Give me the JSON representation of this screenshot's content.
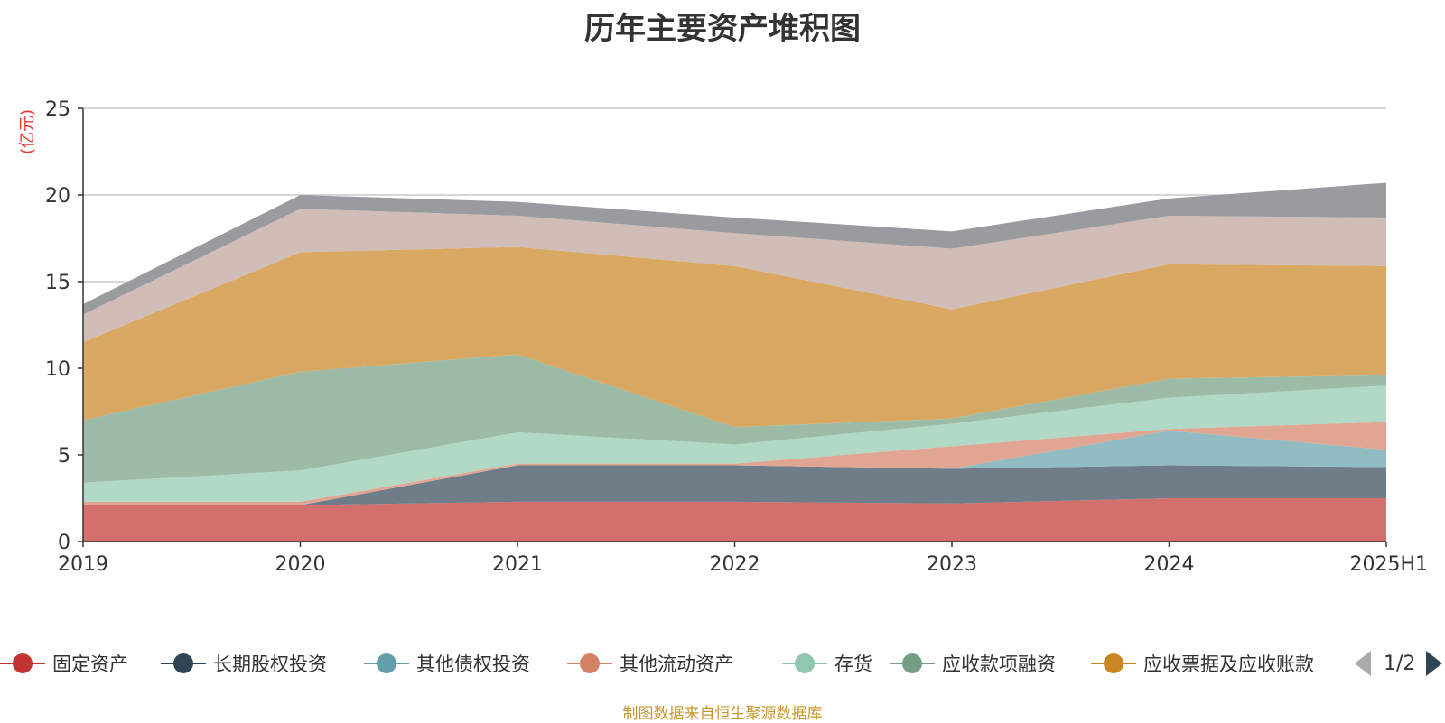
{
  "chart_data": {
    "type": "area",
    "stacked": true,
    "title": "历年主要资产堆积图",
    "ylabel": "(亿元)",
    "xlabel": "",
    "ylim": [
      0,
      25
    ],
    "yticks": [
      0,
      5,
      10,
      15,
      20,
      25
    ],
    "grid": true,
    "legend_position": "bottom",
    "categories": [
      "2019",
      "2020",
      "2021",
      "2022",
      "2023",
      "2024",
      "2025H1"
    ],
    "series": [
      {
        "name": "固定资产",
        "color": "#c23531",
        "fill": "#d3706e",
        "values": [
          2.1,
          2.1,
          2.3,
          2.3,
          2.2,
          2.5,
          2.5
        ]
      },
      {
        "name": "长期股权投资",
        "color": "#2f4554",
        "fill": "#6e7d88",
        "values": [
          0,
          0,
          2.1,
          2.1,
          2.0,
          1.9,
          1.8
        ]
      },
      {
        "name": "其他债权投资",
        "color": "#61a0a8",
        "fill": "#90bcc2",
        "values": [
          0,
          0,
          0,
          0,
          0,
          2.0,
          1.0
        ]
      },
      {
        "name": "其他流动资产",
        "color": "#d48265",
        "fill": "#e1a693",
        "values": [
          0.2,
          0.2,
          0.1,
          0.1,
          1.3,
          0.1,
          1.6
        ]
      },
      {
        "name": "存货",
        "color": "#91c7ae",
        "fill": "#b2d8c6",
        "values": [
          1.1,
          1.8,
          1.8,
          1.1,
          1.3,
          1.8,
          2.1
        ]
      },
      {
        "name": "应收款项融资",
        "color": "#749f83",
        "fill": "#9dbca8",
        "values": [
          3.6,
          5.7,
          4.5,
          1.0,
          0.3,
          1.1,
          0.6
        ]
      },
      {
        "name": "应收票据及应收账款",
        "color": "#ca8622",
        "fill": "#d9a964",
        "values": [
          4.5,
          6.9,
          6.2,
          9.3,
          6.3,
          6.6,
          6.3
        ]
      },
      {
        "name": "",
        "color": "#bda29a",
        "fill": "#d1bdb8",
        "values": [
          1.6,
          2.5,
          1.8,
          1.9,
          3.5,
          2.8,
          2.8
        ]
      },
      {
        "name": "",
        "color": "#6e7074",
        "fill": "#9a9b9f",
        "values": [
          0.6,
          0.8,
          0.8,
          0.9,
          1.0,
          1.0,
          2.0
        ]
      }
    ],
    "pagination": "1/2",
    "source": "制图数据来自恒生聚源数据库"
  }
}
